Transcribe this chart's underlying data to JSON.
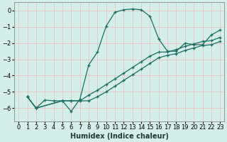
{
  "xlabel": "Humidex (Indice chaleur)",
  "ylabel": "",
  "xlim": [
    -0.5,
    23.5
  ],
  "ylim": [
    -6.8,
    0.5
  ],
  "xticks": [
    0,
    1,
    2,
    3,
    4,
    5,
    6,
    7,
    8,
    9,
    10,
    11,
    12,
    13,
    14,
    15,
    16,
    17,
    18,
    19,
    20,
    21,
    22,
    23
  ],
  "yticks": [
    0,
    -1,
    -2,
    -3,
    -4,
    -5,
    -6
  ],
  "background_color": "#d4eeea",
  "grid_color": "#e8c8c8",
  "line_color": "#1a6e60",
  "curve_x": [
    1,
    2,
    3,
    4,
    5,
    6,
    7,
    8,
    9,
    10,
    11,
    12,
    13,
    14,
    15,
    16,
    17,
    18,
    19,
    20,
    21,
    22,
    23
  ],
  "curve_y": [
    -5.3,
    -6.0,
    -5.5,
    -5.55,
    -5.55,
    -6.2,
    -5.45,
    -3.35,
    -2.55,
    -0.95,
    -0.1,
    0.05,
    0.1,
    0.05,
    -0.35,
    -1.75,
    -2.5,
    -2.5,
    -2.0,
    -2.1,
    -2.1,
    -1.5,
    -1.2
  ],
  "line2_x": [
    1,
    2,
    5,
    6,
    7,
    8,
    9,
    10,
    11,
    12,
    13,
    14,
    15,
    16,
    17,
    18,
    19,
    20,
    21,
    22,
    23
  ],
  "line2_y": [
    -5.3,
    -6.0,
    -5.55,
    -5.55,
    -5.55,
    -5.2,
    -4.9,
    -4.55,
    -4.2,
    -3.85,
    -3.5,
    -3.15,
    -2.8,
    -2.55,
    -2.55,
    -2.4,
    -2.2,
    -2.05,
    -1.9,
    -1.85,
    -1.65
  ],
  "line3_x": [
    1,
    2,
    5,
    6,
    7,
    8,
    9,
    10,
    11,
    12,
    13,
    14,
    15,
    16,
    17,
    18,
    19,
    20,
    21,
    22,
    23
  ],
  "line3_y": [
    -5.3,
    -6.0,
    -5.55,
    -5.55,
    -5.55,
    -5.55,
    -5.3,
    -5.0,
    -4.65,
    -4.3,
    -3.95,
    -3.6,
    -3.25,
    -2.9,
    -2.75,
    -2.65,
    -2.45,
    -2.3,
    -2.15,
    -2.1,
    -1.9
  ],
  "tick_fontsize": 6,
  "xlabel_fontsize": 7
}
